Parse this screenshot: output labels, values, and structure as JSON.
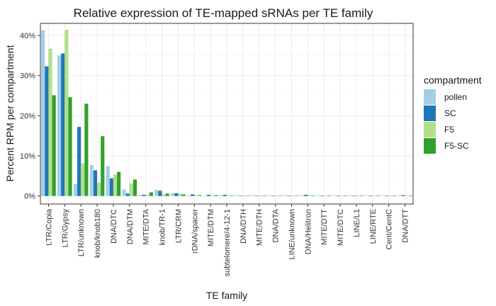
{
  "chart_data": {
    "type": "bar",
    "title": "Relative expression of TE-mapped sRNAs per TE family",
    "xlabel": "TE family",
    "ylabel": "Percent RPM per compartment",
    "ylim": [
      -0.02,
      0.43
    ],
    "yticks": [
      0,
      0.1,
      0.2,
      0.3,
      0.4
    ],
    "ytick_labels": [
      "0%",
      "10%",
      "20%",
      "30%",
      "40%"
    ],
    "grid": true,
    "legend_placement": "right",
    "legend_title": "compartment",
    "categories": [
      "LTR/Copia",
      "LTR/Gypsy",
      "LTR/unknown",
      "knob/knob180",
      "DNA/DTC",
      "DNA/DTM",
      "MITE/DTA",
      "knob/TR-1",
      "LTR/CRM",
      "rDNA/spacer",
      "MITE/DTM",
      "subtelomere/4-12-1",
      "DNA/DTH",
      "MITE/DTH",
      "DNA/DTA",
      "LINE/unknown",
      "DNA/Helitron",
      "MITE/DTT",
      "MITE/DTC",
      "LINE/L1",
      "LINE/RTE",
      "Cent/CentC",
      "DNA/DTT"
    ],
    "series": [
      {
        "name": "pollen",
        "color": "#a6cee3",
        "values": [
          0.413,
          0.35,
          0.03,
          0.077,
          0.075,
          0.016,
          0.003,
          0.015,
          0.007,
          0.002,
          0.001,
          0.002,
          0.002,
          0.002,
          0.001,
          0.002,
          0.002,
          0.001,
          0.001,
          0.002,
          0.001,
          0.001,
          0.002
        ]
      },
      {
        "name": "SC",
        "color": "#1f78b4",
        "values": [
          0.323,
          0.355,
          0.172,
          0.064,
          0.044,
          0.006,
          0.003,
          0.013,
          0.007,
          0.004,
          0.003,
          0.003,
          0.001,
          0.001,
          0.001,
          0.001,
          0.003,
          0.001,
          0.001,
          0.001,
          0.001,
          0.001,
          0.002
        ]
      },
      {
        "name": "F5",
        "color": "#b2df8a",
        "values": [
          0.367,
          0.414,
          0.081,
          0.033,
          0.053,
          0.031,
          0.002,
          0.004,
          0.006,
          0.002,
          0.001,
          0.001,
          0.001,
          0.001,
          0.001,
          0.001,
          0.001,
          0.001,
          0.001,
          0.001,
          0.001,
          0.001,
          0.001
        ]
      },
      {
        "name": "F5-SC",
        "color": "#33a02c",
        "values": [
          0.251,
          0.246,
          0.23,
          0.149,
          0.06,
          0.041,
          0.009,
          0.006,
          0.004,
          0.002,
          0.002,
          0.001,
          0.001,
          0.001,
          0.001,
          0.001,
          0.001,
          0.001,
          0.001,
          0.001,
          0.001,
          0.001,
          0.001
        ]
      }
    ]
  }
}
